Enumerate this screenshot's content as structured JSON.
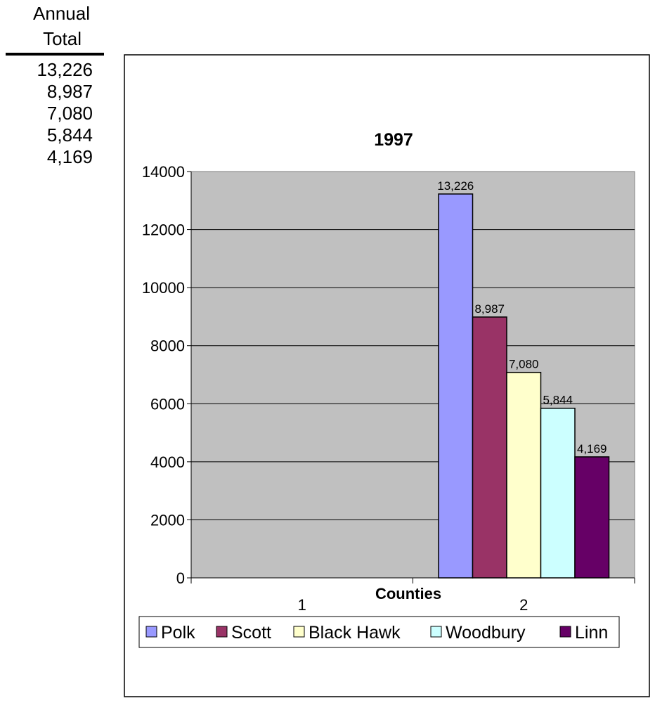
{
  "side_table": {
    "header_line1": "Annual",
    "header_line2": "Total",
    "values": [
      "13,226",
      "8,987",
      "7,080",
      "5,844",
      "4,169"
    ]
  },
  "chart_data": {
    "type": "bar",
    "title": "1997",
    "xlabel": "Counties",
    "ylabel": "",
    "ylim": [
      0,
      14000
    ],
    "yticks": [
      0,
      2000,
      4000,
      6000,
      8000,
      10000,
      12000,
      14000
    ],
    "categories": [
      "1",
      "2"
    ],
    "grid": true,
    "legend_position": "bottom",
    "series": [
      {
        "name": "Polk",
        "values": [
          0,
          13226
        ],
        "label": "13,226",
        "color": "#9999ff"
      },
      {
        "name": "Scott",
        "values": [
          0,
          8987
        ],
        "label": "8,987",
        "color": "#993366"
      },
      {
        "name": "Black Hawk",
        "values": [
          0,
          7080
        ],
        "label": "7,080",
        "color": "#ffffcc"
      },
      {
        "name": "Woodbury",
        "values": [
          0,
          5844
        ],
        "label": "5,844",
        "color": "#ccffff"
      },
      {
        "name": "Linn",
        "values": [
          0,
          4169
        ],
        "label": "4,169",
        "color": "#660066"
      }
    ],
    "plot_background": "#c0c0c0"
  }
}
